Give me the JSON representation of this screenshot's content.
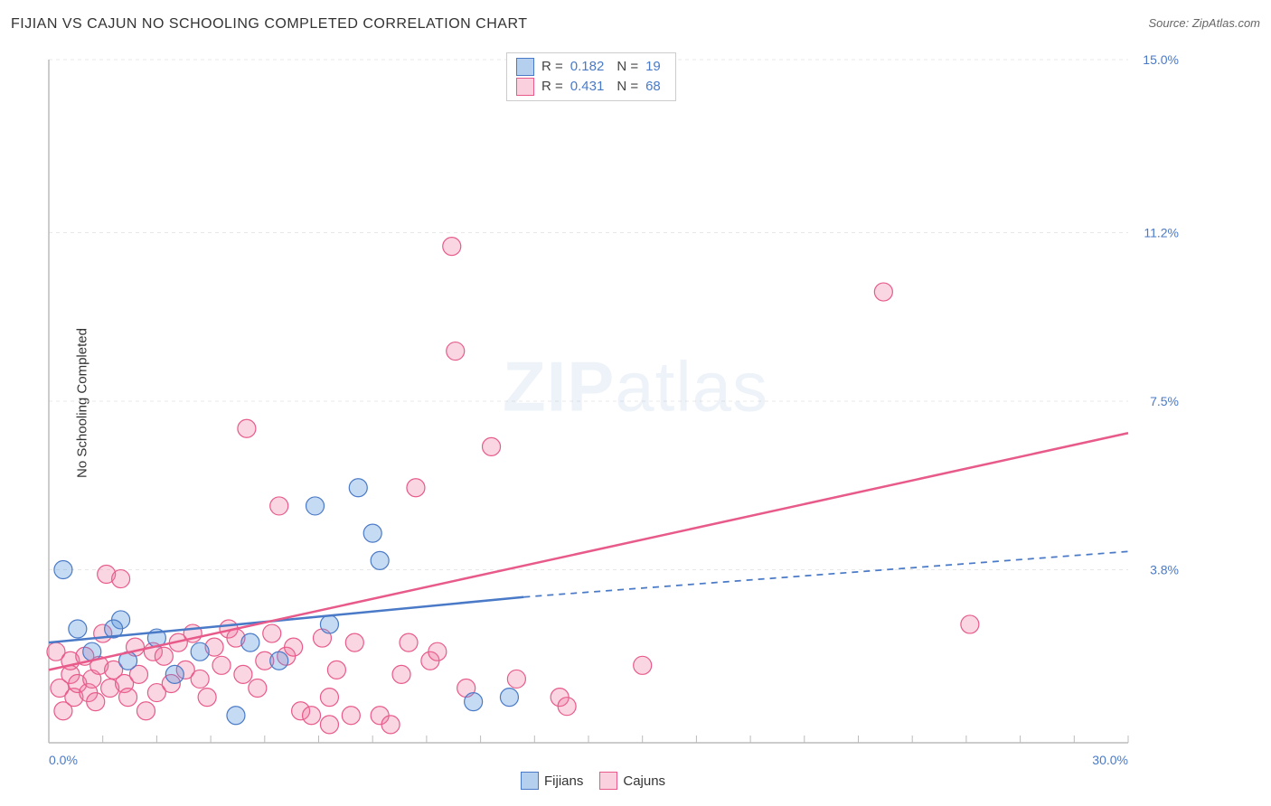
{
  "title": "FIJIAN VS CAJUN NO SCHOOLING COMPLETED CORRELATION CHART",
  "source": "Source: ZipAtlas.com",
  "y_axis_label": "No Schooling Completed",
  "watermark": {
    "part1": "ZIP",
    "part2": "atlas"
  },
  "chart": {
    "type": "scatter-with-regression",
    "xlim": [
      0,
      30
    ],
    "ylim": [
      0,
      15
    ],
    "x_tick_minor_step": 1.5,
    "x_ticks_labeled": [
      {
        "v": 0,
        "label": "0.0%"
      },
      {
        "v": 30,
        "label": "30.0%"
      }
    ],
    "y_ticks": [
      {
        "v": 3.8,
        "label": "3.8%"
      },
      {
        "v": 7.5,
        "label": "7.5%"
      },
      {
        "v": 11.2,
        "label": "11.2%"
      },
      {
        "v": 15.0,
        "label": "15.0%"
      }
    ],
    "background_color": "#ffffff",
    "grid_color": "#e8e8e8",
    "grid_dash": "4,4",
    "axis_color": "#bbbbbb",
    "marker_radius": 10,
    "marker_stroke_width": 1.2,
    "series": [
      {
        "key": "fijians",
        "name": "Fijians",
        "color_fill": "rgba(90,150,220,0.35)",
        "color_stroke": "#4a7ac7",
        "R": "0.182",
        "N": "19",
        "regression": {
          "x0": 0,
          "y0": 2.2,
          "x_solid_end": 13.2,
          "y_solid_end": 3.2,
          "x1": 30,
          "y1": 4.2,
          "line_width": 2.5
        },
        "points": [
          [
            0.4,
            3.8
          ],
          [
            2.0,
            2.7
          ],
          [
            1.8,
            2.5
          ],
          [
            2.2,
            1.8
          ],
          [
            3.5,
            1.5
          ],
          [
            5.2,
            0.6
          ],
          [
            7.4,
            5.2
          ],
          [
            7.8,
            2.6
          ],
          [
            8.6,
            5.6
          ],
          [
            9.2,
            4.0
          ],
          [
            9.0,
            4.6
          ],
          [
            11.8,
            0.9
          ],
          [
            12.8,
            1.0
          ],
          [
            0.8,
            2.5
          ],
          [
            1.2,
            2.0
          ],
          [
            4.2,
            2.0
          ],
          [
            5.6,
            2.2
          ],
          [
            6.4,
            1.8
          ],
          [
            3.0,
            2.3
          ]
        ]
      },
      {
        "key": "cajuns",
        "name": "Cajuns",
        "color_fill": "rgba(240,120,160,0.30)",
        "color_stroke": "#e85a8a",
        "R": "0.431",
        "N": "68",
        "regression": {
          "x0": 0,
          "y0": 1.6,
          "x_solid_end": 30,
          "y_solid_end": 6.8,
          "x1": 30,
          "y1": 6.8,
          "line_width": 2.5
        },
        "points": [
          [
            0.2,
            2.0
          ],
          [
            0.3,
            1.2
          ],
          [
            0.4,
            0.7
          ],
          [
            0.6,
            1.5
          ],
          [
            0.6,
            1.8
          ],
          [
            0.7,
            1.0
          ],
          [
            0.8,
            1.3
          ],
          [
            1.0,
            1.9
          ],
          [
            1.1,
            1.1
          ],
          [
            1.2,
            1.4
          ],
          [
            1.3,
            0.9
          ],
          [
            1.4,
            1.7
          ],
          [
            1.5,
            2.4
          ],
          [
            1.6,
            3.7
          ],
          [
            1.7,
            1.2
          ],
          [
            1.8,
            1.6
          ],
          [
            2.0,
            3.6
          ],
          [
            2.1,
            1.3
          ],
          [
            2.2,
            1.0
          ],
          [
            2.4,
            2.1
          ],
          [
            2.5,
            1.5
          ],
          [
            2.7,
            0.7
          ],
          [
            2.9,
            2.0
          ],
          [
            3.0,
            1.1
          ],
          [
            3.2,
            1.9
          ],
          [
            3.4,
            1.3
          ],
          [
            3.6,
            2.2
          ],
          [
            3.8,
            1.6
          ],
          [
            4.0,
            2.4
          ],
          [
            4.2,
            1.4
          ],
          [
            4.4,
            1.0
          ],
          [
            4.6,
            2.1
          ],
          [
            4.8,
            1.7
          ],
          [
            5.0,
            2.5
          ],
          [
            5.2,
            2.3
          ],
          [
            5.4,
            1.5
          ],
          [
            5.5,
            6.9
          ],
          [
            5.8,
            1.2
          ],
          [
            6.0,
            1.8
          ],
          [
            6.2,
            2.4
          ],
          [
            6.4,
            5.2
          ],
          [
            6.6,
            1.9
          ],
          [
            6.8,
            2.1
          ],
          [
            7.0,
            0.7
          ],
          [
            7.3,
            0.6
          ],
          [
            7.6,
            2.3
          ],
          [
            7.8,
            1.0
          ],
          [
            7.8,
            0.4
          ],
          [
            8.0,
            1.6
          ],
          [
            8.4,
            0.6
          ],
          [
            8.5,
            2.2
          ],
          [
            9.2,
            0.6
          ],
          [
            9.5,
            0.4
          ],
          [
            10.2,
            5.6
          ],
          [
            10.0,
            2.2
          ],
          [
            10.6,
            1.8
          ],
          [
            11.2,
            10.9
          ],
          [
            11.3,
            8.6
          ],
          [
            12.3,
            6.5
          ],
          [
            13.0,
            1.4
          ],
          [
            14.2,
            1.0
          ],
          [
            14.4,
            0.8
          ],
          [
            16.5,
            1.7
          ],
          [
            23.2,
            9.9
          ],
          [
            25.6,
            2.6
          ],
          [
            10.8,
            2.0
          ],
          [
            11.6,
            1.2
          ],
          [
            9.8,
            1.5
          ]
        ]
      }
    ]
  },
  "legend_top": {
    "rows": [
      {
        "swatch": "blue",
        "R_label": "R =",
        "R": "0.182",
        "N_label": "N =",
        "N": "19"
      },
      {
        "swatch": "pink",
        "R_label": "R =",
        "R": "0.431",
        "N_label": "N =",
        "N": "68"
      }
    ]
  },
  "legend_bottom": [
    {
      "swatch": "blue",
      "label": "Fijians"
    },
    {
      "swatch": "pink",
      "label": "Cajuns"
    }
  ]
}
